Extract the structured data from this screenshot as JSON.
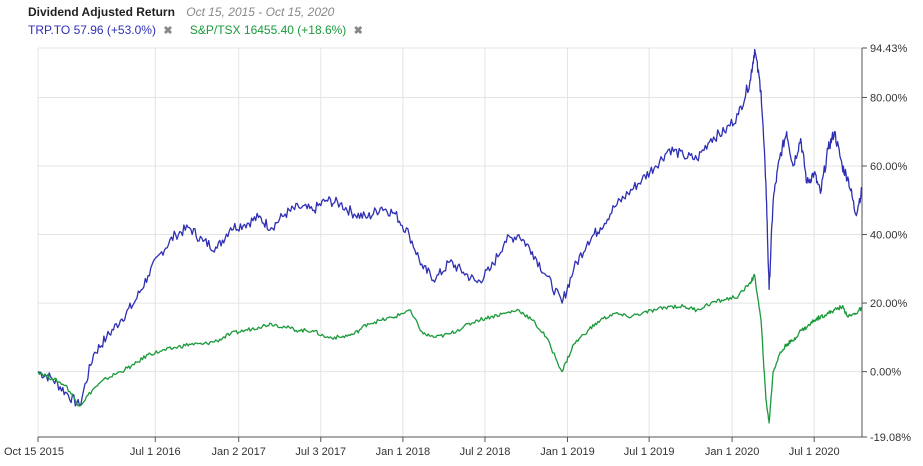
{
  "header": {
    "title": "Dividend Adjusted Return",
    "range": "Oct 15, 2015 - Oct 15, 2020"
  },
  "legend": [
    {
      "label": "TRP.TO 57.96 (+53.0%)",
      "color": "#2f2fb4",
      "remove_icon": "close-icon",
      "remove_glyph": "✖"
    },
    {
      "label": "S&P/TSX 16455.40 (+18.6%)",
      "color": "#1a9a3a",
      "remove_icon": "close-icon",
      "remove_glyph": "✖"
    }
  ],
  "chart_data": {
    "type": "line",
    "x_range": [
      "2015-10-15",
      "2020-10-15"
    ],
    "ylim": [
      -19.08,
      94.43
    ],
    "y_ticks": [
      "94.43%",
      "80.00%",
      "60.00%",
      "40.00%",
      "20.00%",
      "0.00%",
      "-19.08%"
    ],
    "y_tick_values": [
      94.43,
      80,
      60,
      40,
      20,
      0,
      -19.08
    ],
    "x_ticks": [
      "Oct 15 2015",
      "Jul 1 2016",
      "Jan 2 2017",
      "Jul 3 2017",
      "Jan 1 2018",
      "Jul 2 2018",
      "Jan 1 2019",
      "Jul 1 2019",
      "Jan 1 2020",
      "Jul 1 2020"
    ],
    "x_tick_dates": [
      "2015-10-15",
      "2016-07-01",
      "2017-01-02",
      "2017-07-03",
      "2018-01-01",
      "2018-07-02",
      "2019-01-01",
      "2019-07-01",
      "2020-01-01",
      "2020-07-01"
    ],
    "grid": true,
    "series": [
      {
        "name": "TRP.TO",
        "color": "#2f2fb4",
        "x": [
          "2015-10-15",
          "2015-11-15",
          "2015-12-15",
          "2016-01-15",
          "2016-02-15",
          "2016-03-15",
          "2016-04-15",
          "2016-05-15",
          "2016-06-15",
          "2016-07-15",
          "2016-08-15",
          "2016-09-15",
          "2016-10-15",
          "2016-11-15",
          "2016-12-15",
          "2017-01-15",
          "2017-02-15",
          "2017-03-15",
          "2017-04-15",
          "2017-05-15",
          "2017-06-15",
          "2017-07-15",
          "2017-08-15",
          "2017-09-15",
          "2017-10-15",
          "2017-11-15",
          "2017-12-15",
          "2018-01-15",
          "2018-02-15",
          "2018-03-15",
          "2018-04-15",
          "2018-05-15",
          "2018-06-15",
          "2018-07-15",
          "2018-08-15",
          "2018-09-15",
          "2018-10-15",
          "2018-11-15",
          "2018-12-20",
          "2019-01-15",
          "2019-02-15",
          "2019-03-15",
          "2019-04-15",
          "2019-05-15",
          "2019-06-15",
          "2019-07-15",
          "2019-08-15",
          "2019-09-15",
          "2019-10-15",
          "2019-11-15",
          "2019-12-15",
          "2020-01-15",
          "2020-02-10",
          "2020-02-20",
          "2020-03-05",
          "2020-03-16",
          "2020-03-23",
          "2020-04-01",
          "2020-04-15",
          "2020-05-01",
          "2020-05-15",
          "2020-06-01",
          "2020-06-15",
          "2020-07-01",
          "2020-07-15",
          "2020-08-01",
          "2020-08-15",
          "2020-09-01",
          "2020-09-15",
          "2020-10-01",
          "2020-10-15"
        ],
        "y": [
          0,
          -2,
          -6,
          -10,
          5,
          10,
          15,
          20,
          28,
          35,
          40,
          42,
          38,
          36,
          42,
          43,
          45,
          42,
          46,
          48,
          47,
          50,
          49,
          46,
          45,
          48,
          46,
          40,
          30,
          27,
          32,
          29,
          26,
          30,
          38,
          40,
          35,
          28,
          20,
          30,
          38,
          42,
          48,
          52,
          56,
          60,
          65,
          63,
          62,
          68,
          70,
          75,
          85,
          94,
          82,
          55,
          24,
          50,
          62,
          70,
          60,
          68,
          55,
          58,
          52,
          65,
          70,
          60,
          56,
          46,
          53
        ]
      },
      {
        "name": "S&P/TSX",
        "color": "#1a9a3a",
        "x": [
          "2015-10-15",
          "2015-11-15",
          "2015-12-15",
          "2016-01-15",
          "2016-02-15",
          "2016-03-15",
          "2016-04-15",
          "2016-05-15",
          "2016-06-15",
          "2016-07-15",
          "2016-08-15",
          "2016-09-15",
          "2016-10-15",
          "2016-11-15",
          "2016-12-15",
          "2017-01-15",
          "2017-02-15",
          "2017-03-15",
          "2017-04-15",
          "2017-05-15",
          "2017-06-15",
          "2017-07-15",
          "2017-08-15",
          "2017-09-15",
          "2017-10-15",
          "2017-11-15",
          "2017-12-15",
          "2018-01-15",
          "2018-02-15",
          "2018-03-15",
          "2018-04-15",
          "2018-05-15",
          "2018-06-15",
          "2018-07-15",
          "2018-08-15",
          "2018-09-15",
          "2018-10-15",
          "2018-11-15",
          "2018-12-20",
          "2019-01-15",
          "2019-02-15",
          "2019-03-15",
          "2019-04-15",
          "2019-05-15",
          "2019-06-15",
          "2019-07-15",
          "2019-08-15",
          "2019-09-15",
          "2019-10-15",
          "2019-11-15",
          "2019-12-15",
          "2020-01-15",
          "2020-02-10",
          "2020-02-20",
          "2020-03-05",
          "2020-03-16",
          "2020-03-23",
          "2020-04-01",
          "2020-04-15",
          "2020-05-01",
          "2020-05-15",
          "2020-06-01",
          "2020-06-15",
          "2020-07-01",
          "2020-07-15",
          "2020-08-01",
          "2020-08-15",
          "2020-09-01",
          "2020-09-15",
          "2020-10-01",
          "2020-10-15"
        ],
        "y": [
          0,
          -2,
          -4,
          -10,
          -5,
          -2,
          0,
          2,
          5,
          6,
          7,
          8,
          8,
          9,
          11,
          12,
          13,
          14,
          13,
          12,
          12,
          10,
          10,
          11,
          14,
          15,
          16,
          18,
          11,
          10,
          11,
          13,
          15,
          16,
          17,
          18,
          15,
          10,
          0,
          8,
          12,
          15,
          17,
          16,
          17,
          18,
          19,
          19,
          18,
          20,
          21,
          22,
          26,
          28,
          15,
          -8,
          -15,
          0,
          5,
          8,
          9,
          12,
          13,
          15,
          16,
          17,
          18,
          19,
          16,
          17,
          18.6
        ]
      }
    ]
  }
}
